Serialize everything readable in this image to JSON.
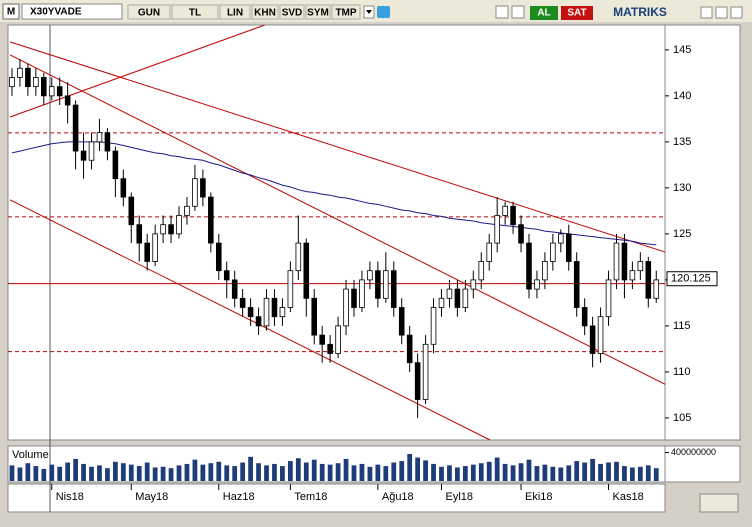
{
  "toolbar": {
    "logo": "M",
    "symbol": "X30YVADE",
    "buttons": [
      "GUN",
      "TL",
      "LIN",
      "KHN",
      "SVD",
      "SYM",
      "TMP"
    ],
    "buy": "AL",
    "sell": "SAT",
    "brand": "MATRIKS"
  },
  "chart_data": {
    "type": "candlestick",
    "xlim": [
      -0.5,
      82.1
    ],
    "ylim": [
      102.6,
      147.7
    ],
    "yticks": [
      105,
      110,
      115,
      120,
      125,
      130,
      135,
      140,
      145
    ],
    "categories": [
      null,
      null,
      null,
      null,
      null,
      "Nis18",
      null,
      null,
      null,
      null,
      null,
      null,
      null,
      null,
      null,
      "May18",
      null,
      null,
      null,
      null,
      null,
      null,
      null,
      null,
      null,
      null,
      "Haz18",
      null,
      null,
      null,
      null,
      null,
      null,
      null,
      null,
      "Tem18",
      null,
      null,
      null,
      null,
      null,
      null,
      null,
      null,
      null,
      null,
      "Ağu18",
      null,
      null,
      null,
      null,
      null,
      null,
      null,
      "Eyl18",
      null,
      null,
      null,
      null,
      null,
      null,
      null,
      null,
      null,
      "Eki18",
      null,
      null,
      null,
      null,
      null,
      null,
      null,
      null,
      null,
      null,
      "Kas18",
      null,
      null,
      null,
      null,
      null,
      null
    ],
    "ohlc": [
      [
        141,
        143,
        140,
        142
      ],
      [
        142,
        144,
        141,
        143
      ],
      [
        143,
        143.5,
        140,
        141
      ],
      [
        141,
        143,
        140,
        142
      ],
      [
        142,
        142.5,
        139,
        140
      ],
      [
        140,
        142,
        139.5,
        141
      ],
      [
        141,
        142,
        139,
        140
      ],
      [
        140,
        141.5,
        137,
        139
      ],
      [
        139,
        139.5,
        132,
        134
      ],
      [
        134,
        136,
        131,
        133
      ],
      [
        133,
        136,
        132,
        135
      ],
      [
        135,
        137.5,
        134,
        136
      ],
      [
        136,
        136.5,
        133,
        134
      ],
      [
        134,
        134.5,
        129,
        131
      ],
      [
        131,
        132,
        128,
        129
      ],
      [
        129,
        129.5,
        124,
        126
      ],
      [
        126,
        127,
        122,
        124
      ],
      [
        124,
        125,
        121,
        122
      ],
      [
        122,
        126,
        121.5,
        125
      ],
      [
        125,
        127,
        124,
        126
      ],
      [
        126,
        127,
        124,
        125
      ],
      [
        125,
        128,
        124.5,
        127
      ],
      [
        127,
        129,
        126,
        128
      ],
      [
        128,
        132.5,
        127.5,
        131
      ],
      [
        131,
        132,
        128,
        129
      ],
      [
        129,
        129.5,
        123,
        124
      ],
      [
        124,
        125,
        120,
        121
      ],
      [
        121,
        122,
        118,
        120
      ],
      [
        120,
        121,
        117,
        118
      ],
      [
        118,
        119,
        116,
        117
      ],
      [
        117,
        118,
        115,
        116
      ],
      [
        116,
        117,
        114,
        115
      ],
      [
        115,
        119,
        114.5,
        118
      ],
      [
        118,
        119,
        115,
        116
      ],
      [
        116,
        118,
        115,
        117
      ],
      [
        117,
        122,
        116.5,
        121
      ],
      [
        121,
        127,
        120,
        124
      ],
      [
        124,
        124.5,
        116,
        118
      ],
      [
        118,
        119,
        113,
        114
      ],
      [
        114,
        115,
        111,
        113
      ],
      [
        113,
        114,
        111,
        112
      ],
      [
        112,
        116,
        111.5,
        115
      ],
      [
        115,
        120,
        114,
        119
      ],
      [
        119,
        120,
        116,
        117
      ],
      [
        117,
        121,
        116.5,
        120
      ],
      [
        120,
        122,
        119,
        121
      ],
      [
        121,
        122,
        117,
        118
      ],
      [
        118,
        123,
        117.5,
        121
      ],
      [
        121,
        122,
        116,
        117
      ],
      [
        117,
        118,
        113,
        114
      ],
      [
        114,
        115,
        110,
        111
      ],
      [
        111,
        112,
        105,
        107
      ],
      [
        107,
        114,
        106.5,
        113
      ],
      [
        113,
        118,
        112,
        117
      ],
      [
        117,
        119,
        116,
        118
      ],
      [
        118,
        120,
        117,
        119
      ],
      [
        119,
        120,
        116,
        117
      ],
      [
        117,
        120,
        116.5,
        119
      ],
      [
        119,
        121,
        118,
        120
      ],
      [
        120,
        123,
        119,
        122
      ],
      [
        122,
        125,
        121,
        124
      ],
      [
        124,
        129,
        123,
        127
      ],
      [
        127,
        128.5,
        126,
        128
      ],
      [
        128,
        128.5,
        125,
        126
      ],
      [
        126,
        127,
        123,
        124
      ],
      [
        124,
        125,
        118,
        119
      ],
      [
        119,
        121,
        118,
        120
      ],
      [
        120,
        123,
        119,
        122
      ],
      [
        122,
        125,
        121,
        124
      ],
      [
        124,
        125.5,
        123,
        125
      ],
      [
        125,
        126,
        121,
        122
      ],
      [
        122,
        123,
        116,
        117
      ],
      [
        117,
        118,
        114,
        115
      ],
      [
        115,
        116,
        110.5,
        112
      ],
      [
        112,
        117,
        111,
        116
      ],
      [
        116,
        121,
        115,
        120
      ],
      [
        120,
        125,
        119,
        124
      ],
      [
        124,
        125,
        118,
        120
      ],
      [
        120,
        122,
        119,
        121
      ],
      [
        121,
        123,
        120,
        122
      ],
      [
        122,
        122.5,
        117,
        118
      ],
      [
        118,
        121,
        117.5,
        120
      ]
    ],
    "up_color": "#ffffff",
    "down_color": "#000000",
    "moving_average": {
      "color": "#1a1a8c",
      "values": [
        133.8,
        134,
        134.2,
        134.4,
        134.6,
        134.8,
        134.9,
        135,
        135,
        135,
        135,
        135,
        134.9,
        134.8,
        134.6,
        134.4,
        134.2,
        134,
        133.8,
        133.7,
        133.5,
        133.4,
        133.2,
        133.1,
        133,
        132.7,
        132.5,
        132.2,
        131.9,
        131.6,
        131.4,
        131.1,
        130.9,
        130.6,
        130.3,
        130.1,
        129.8,
        129.6,
        129.5,
        129.3,
        129.2,
        129,
        128.9,
        128.7,
        128.5,
        128.3,
        128.2,
        128,
        127.8,
        127.6,
        127.5,
        127.3,
        127.2,
        127,
        126.9,
        126.7,
        126.6,
        126.5,
        126.4,
        126.2,
        126.1,
        126,
        125.9,
        125.8,
        125.7,
        125.6,
        125.5,
        125.3,
        125.2,
        125.1,
        125,
        124.9,
        124.8,
        124.7,
        124.6,
        124.5,
        124.4,
        124.3,
        124.2,
        124,
        123.9,
        123.8
      ]
    },
    "trendlines": [
      {
        "color": "#c00000",
        "from": [
          -0.25,
          145.87
        ],
        "to": [
          84,
          122.5
        ]
      },
      {
        "color": "#c00000",
        "from": [
          -0.25,
          144.46
        ],
        "to": [
          84,
          107.83
        ]
      },
      {
        "color": "#c00000",
        "from": [
          -0.25,
          128.7
        ],
        "to": [
          60.1,
          102.6
        ]
      },
      {
        "color": "#c00000",
        "from": [
          -0.25,
          137.7
        ],
        "to": [
          31.8,
          147.7
        ]
      }
    ],
    "hlines": [
      {
        "value": 135.98,
        "dashed": true,
        "color": "#c00000"
      },
      {
        "value": 126.85,
        "dashed": true,
        "color": "#c00000"
      },
      {
        "value": 112.2,
        "dashed": true,
        "color": "#c00000"
      },
      {
        "value": 119.6,
        "dashed": false,
        "color": "#c00000"
      }
    ],
    "last_price": 120.125,
    "volume": {
      "label": "Volume",
      "color": "#1e3c78",
      "ylim": [
        0,
        450000000
      ],
      "yticks": [
        {
          "value": 400000000,
          "label": "400000000"
        }
      ],
      "values": [
        220000000,
        190000000,
        250000000,
        210000000,
        170000000,
        230000000,
        200000000,
        260000000,
        310000000,
        240000000,
        200000000,
        220000000,
        180000000,
        270000000,
        250000000,
        230000000,
        210000000,
        260000000,
        190000000,
        200000000,
        180000000,
        220000000,
        240000000,
        300000000,
        230000000,
        250000000,
        270000000,
        220000000,
        210000000,
        260000000,
        340000000,
        250000000,
        220000000,
        240000000,
        210000000,
        280000000,
        320000000,
        260000000,
        300000000,
        240000000,
        230000000,
        250000000,
        310000000,
        220000000,
        240000000,
        200000000,
        230000000,
        210000000,
        260000000,
        280000000,
        380000000,
        330000000,
        290000000,
        240000000,
        200000000,
        220000000,
        190000000,
        210000000,
        230000000,
        250000000,
        270000000,
        330000000,
        240000000,
        220000000,
        250000000,
        300000000,
        210000000,
        230000000,
        200000000,
        190000000,
        220000000,
        280000000,
        260000000,
        310000000,
        240000000,
        260000000,
        270000000,
        210000000,
        190000000,
        200000000,
        220000000,
        180000000
      ]
    }
  }
}
